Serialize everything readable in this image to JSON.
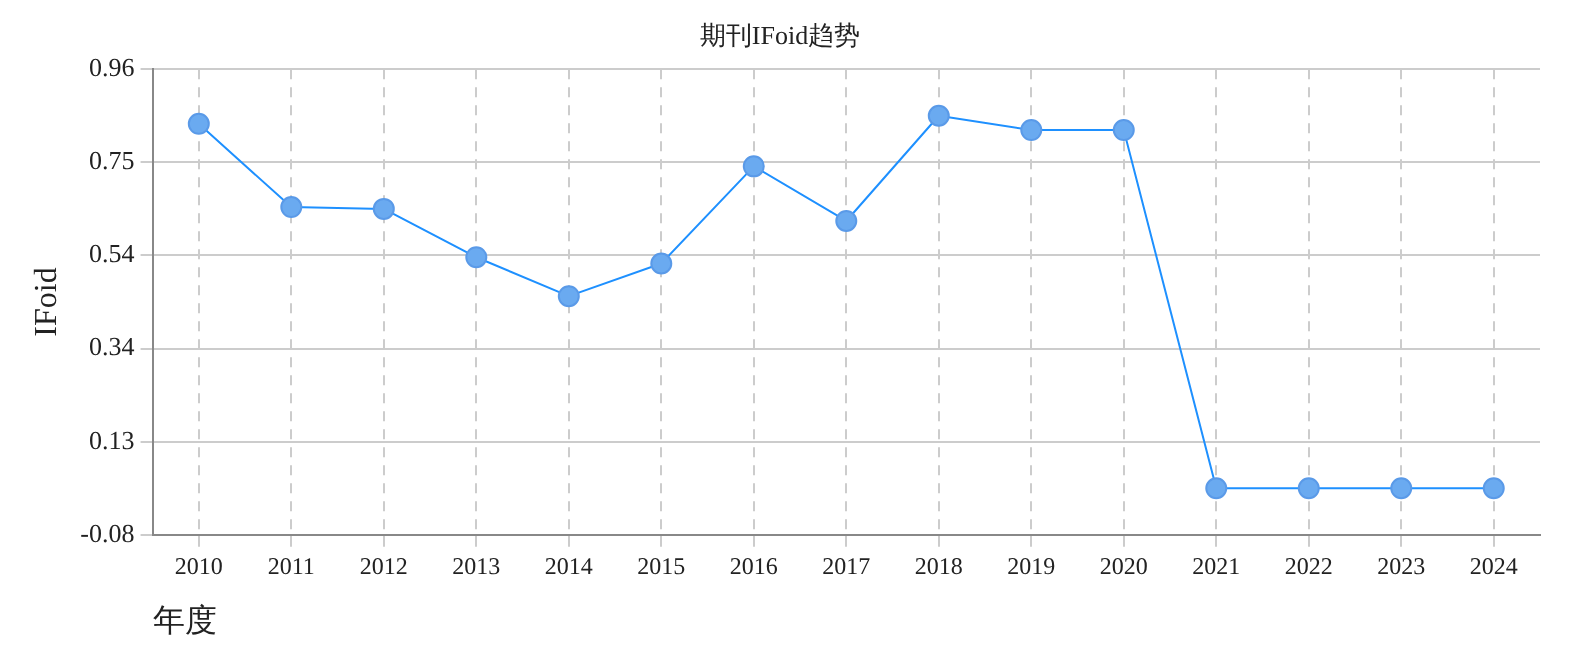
{
  "chart_data": {
    "type": "line",
    "title": "期刊IFoid趋势",
    "xlabel": "年度",
    "ylabel": "IFoid",
    "categories": [
      "2010",
      "2011",
      "2012",
      "2013",
      "2014",
      "2015",
      "2016",
      "2017",
      "2018",
      "2019",
      "2020",
      "2021",
      "2022",
      "2023",
      "2024"
    ],
    "series": [
      {
        "color": "#1e90ff",
        "values": [
          0.838,
          0.652,
          0.648,
          0.54,
          0.453,
          0.526,
          0.743,
          0.621,
          0.856,
          0.824,
          0.824,
          0.024,
          0.024,
          0.024,
          0.024
        ]
      }
    ],
    "ylim": [
      -0.08,
      0.96
    ],
    "yticks": [
      -0.08,
      {
        "value": 0.128,
        "label": "0.13"
      },
      {
        "value": 0.336,
        "label": "0.34"
      },
      {
        "value": 0.544,
        "label": "0.54"
      },
      {
        "value": 0.752,
        "label": "0.75"
      },
      0.96
    ],
    "grid": true,
    "legend": false,
    "marker": "circle",
    "line_style": "solid"
  }
}
